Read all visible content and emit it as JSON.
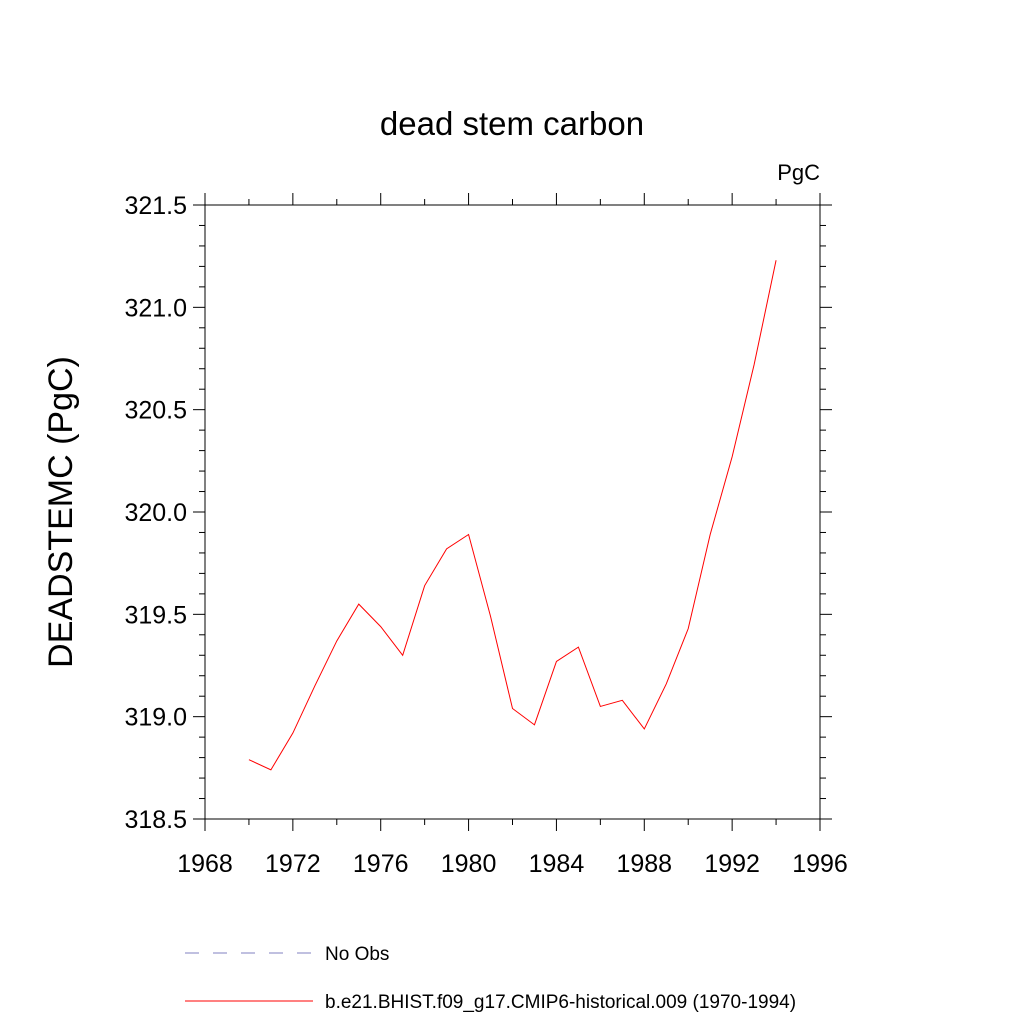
{
  "chart_data": {
    "type": "line",
    "title": "dead stem carbon",
    "units": "PgC",
    "xlabel": "",
    "ylabel": "DEADSTEMC  (PgC)",
    "xlim": [
      1968,
      1996
    ],
    "ylim": [
      318.5,
      321.5
    ],
    "xticks": [
      1968,
      1972,
      1976,
      1980,
      1984,
      1988,
      1992,
      1996
    ],
    "xtick_labels": [
      "1968",
      "1972",
      "1976",
      "1980",
      "1984",
      "1988",
      "1992",
      "1996"
    ],
    "yticks": [
      318.5,
      319.0,
      319.5,
      320.0,
      320.5,
      321.0,
      321.5
    ],
    "ytick_labels": [
      "318.5",
      "319.0",
      "319.5",
      "320.0",
      "320.5",
      "321.0",
      "321.5"
    ],
    "grid": false,
    "series": [
      {
        "name": "b.e21.BHIST.f09_g17.CMIP6-historical.009 (1970-1994)",
        "color": "#ff0000",
        "x": [
          1970,
          1971,
          1972,
          1973,
          1974,
          1975,
          1976,
          1977,
          1978,
          1979,
          1980,
          1981,
          1982,
          1983,
          1984,
          1985,
          1986,
          1987,
          1988,
          1989,
          1990,
          1991,
          1992,
          1993,
          1994
        ],
        "values": [
          318.79,
          318.74,
          318.92,
          319.15,
          319.37,
          319.55,
          319.44,
          319.3,
          319.64,
          319.82,
          319.89,
          319.49,
          319.04,
          318.96,
          319.27,
          319.34,
          319.05,
          319.08,
          318.94,
          319.16,
          319.43,
          319.89,
          320.27,
          320.72,
          321.23
        ]
      }
    ],
    "legend": [
      {
        "label": "No Obs",
        "style": "dashed",
        "color": "#8080c0"
      },
      {
        "label": "b.e21.BHIST.f09_g17.CMIP6-historical.009 (1970-1994)",
        "style": "solid",
        "color": "#ff0000"
      }
    ]
  }
}
